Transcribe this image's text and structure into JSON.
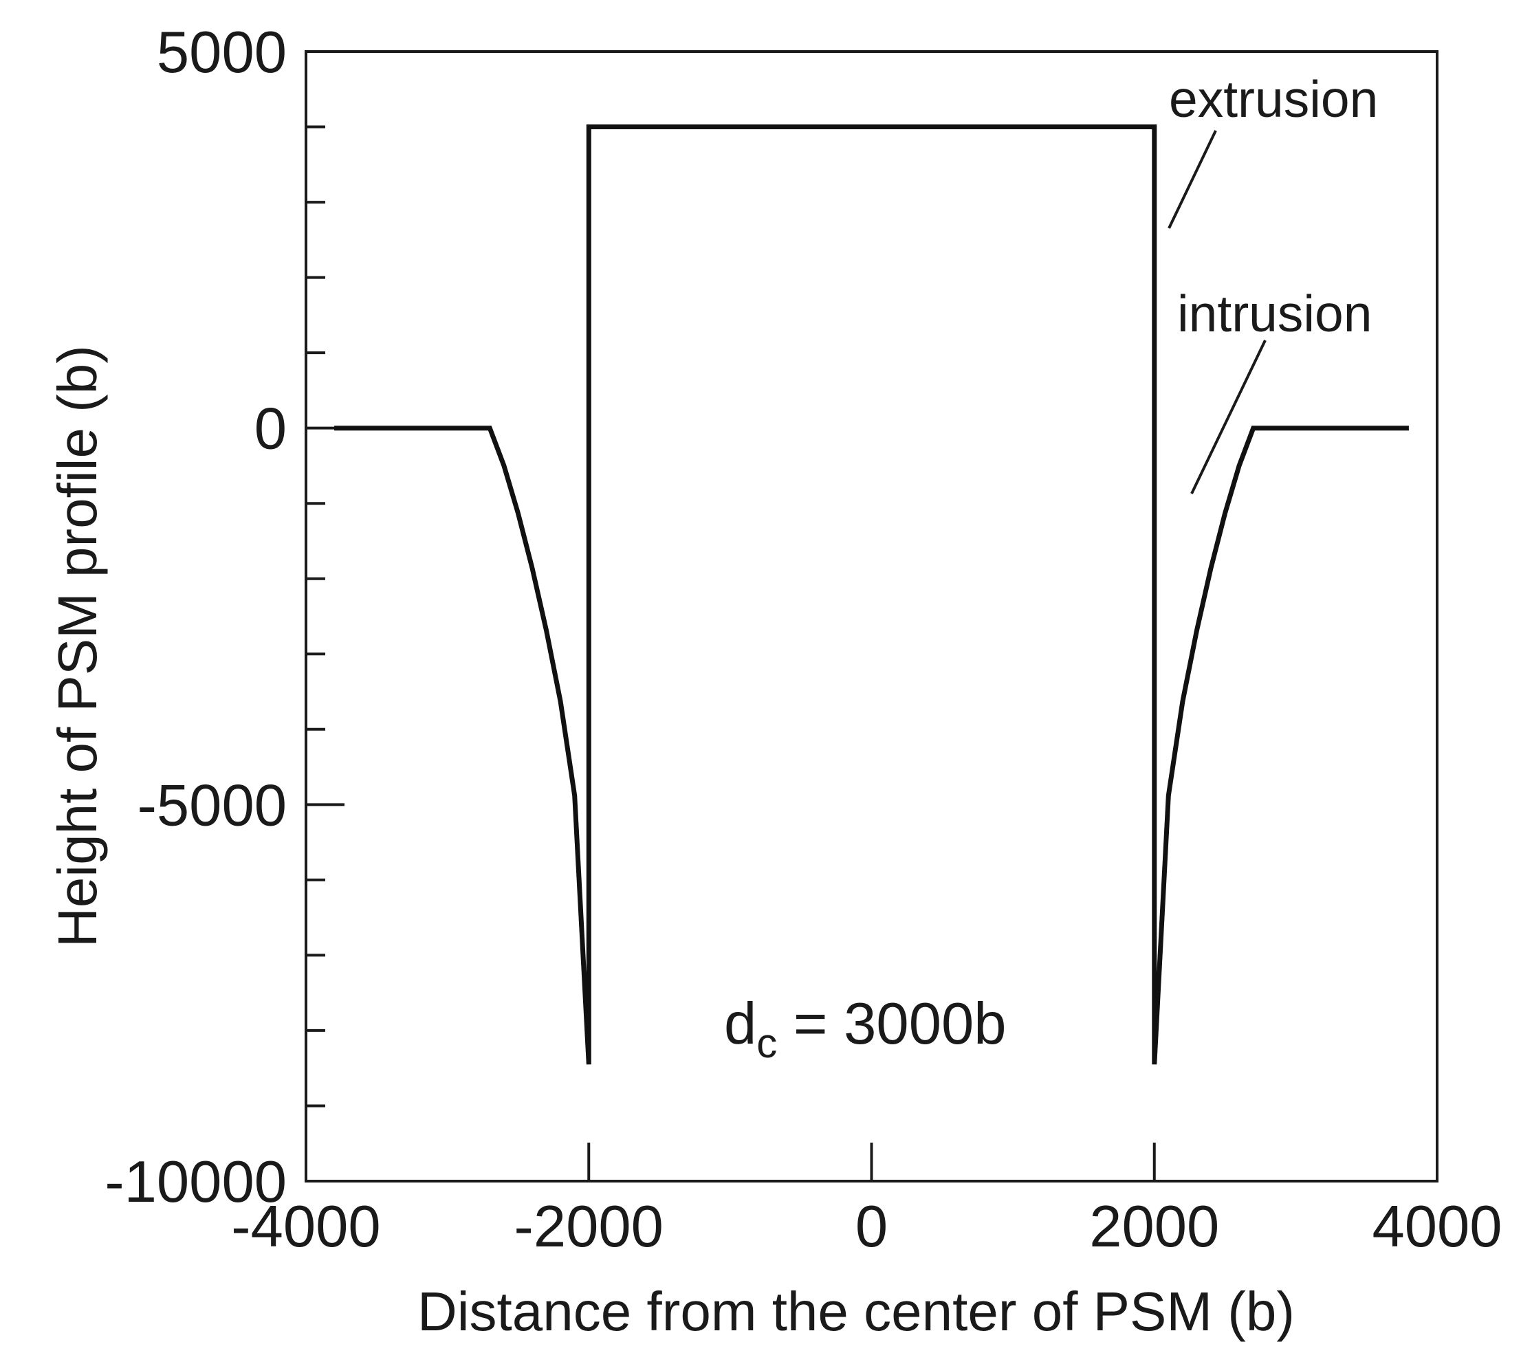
{
  "chart_data": {
    "type": "line",
    "title": "",
    "xlabel": "Distance from the center of PSM (b)",
    "ylabel": "Height of PSM profile (b)",
    "xlim": [
      -4000,
      4000
    ],
    "ylim": [
      -10000,
      5000
    ],
    "x_ticks": [
      -4000,
      -2000,
      0,
      2000,
      4000
    ],
    "y_ticks": [
      -10000,
      -5000,
      0,
      5000
    ],
    "x_tick_labels": [
      "-4000",
      "-2000",
      "0",
      "2000",
      "4000"
    ],
    "y_tick_labels": [
      "-10000",
      "-5000",
      "0",
      "5000"
    ],
    "y_minor_step": 1000,
    "grid": false,
    "series": [
      {
        "x": [
          -3800,
          -2700,
          -2600,
          -2500,
          -2400,
          -2300,
          -2200,
          -2100,
          -2000,
          -2000,
          2000,
          2000,
          2100,
          2200,
          2300,
          2400,
          2500,
          2600,
          2700,
          3800
        ],
        "y": [
          0,
          0,
          -500,
          -1130,
          -1860,
          -2690,
          -3630,
          -4880,
          -8450,
          4000,
          4000,
          -8450,
          -4880,
          -3630,
          -2690,
          -1860,
          -1130,
          -500,
          0,
          0
        ]
      }
    ],
    "annotations": [
      {
        "text": "extrusion"
      },
      {
        "text": "intrusion"
      }
    ],
    "parameter_label": {
      "main": "d",
      "sub": "c",
      "rest": " = 3000b"
    }
  }
}
